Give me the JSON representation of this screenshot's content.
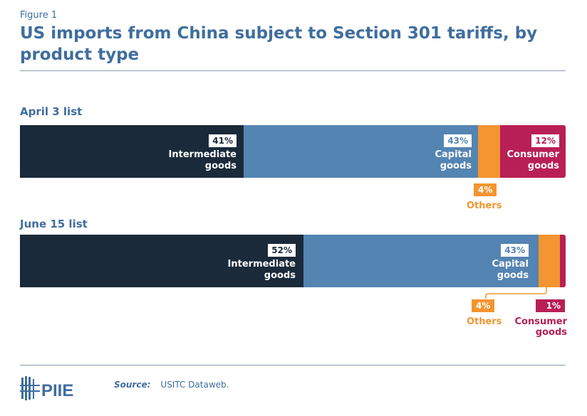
{
  "figure_label": "Figure 1",
  "chart_data": {
    "type": "bar",
    "orientation": "horizontal",
    "stacked": true,
    "normalized": true,
    "title": "US imports from China subject to Section 301 tariffs, by product type",
    "categories": [
      "April 3 list",
      "June 15 list"
    ],
    "series": [
      {
        "name": "Intermediate goods",
        "values": [
          41,
          52
        ],
        "color": "#1b2a3a"
      },
      {
        "name": "Capital goods",
        "values": [
          43,
          43
        ],
        "color": "#5484b2"
      },
      {
        "name": "Others",
        "values": [
          4,
          4
        ],
        "color": "#f39530"
      },
      {
        "name": "Consumer goods",
        "values": [
          12,
          1
        ],
        "color": "#b81f55"
      }
    ],
    "data_labels": [
      [
        "41%",
        "43%",
        "4%",
        "12%"
      ],
      [
        "52%",
        "43%",
        "4%",
        "1%"
      ]
    ],
    "series_labels": {
      "intermediate": [
        "Intermediate",
        "goods"
      ],
      "capital": [
        "Capital",
        "goods"
      ],
      "others": "Others",
      "consumer": [
        "Consumer",
        "goods"
      ]
    }
  },
  "source": {
    "label": "Source:",
    "text": "USITC Dataweb."
  },
  "logo": "PIIE"
}
